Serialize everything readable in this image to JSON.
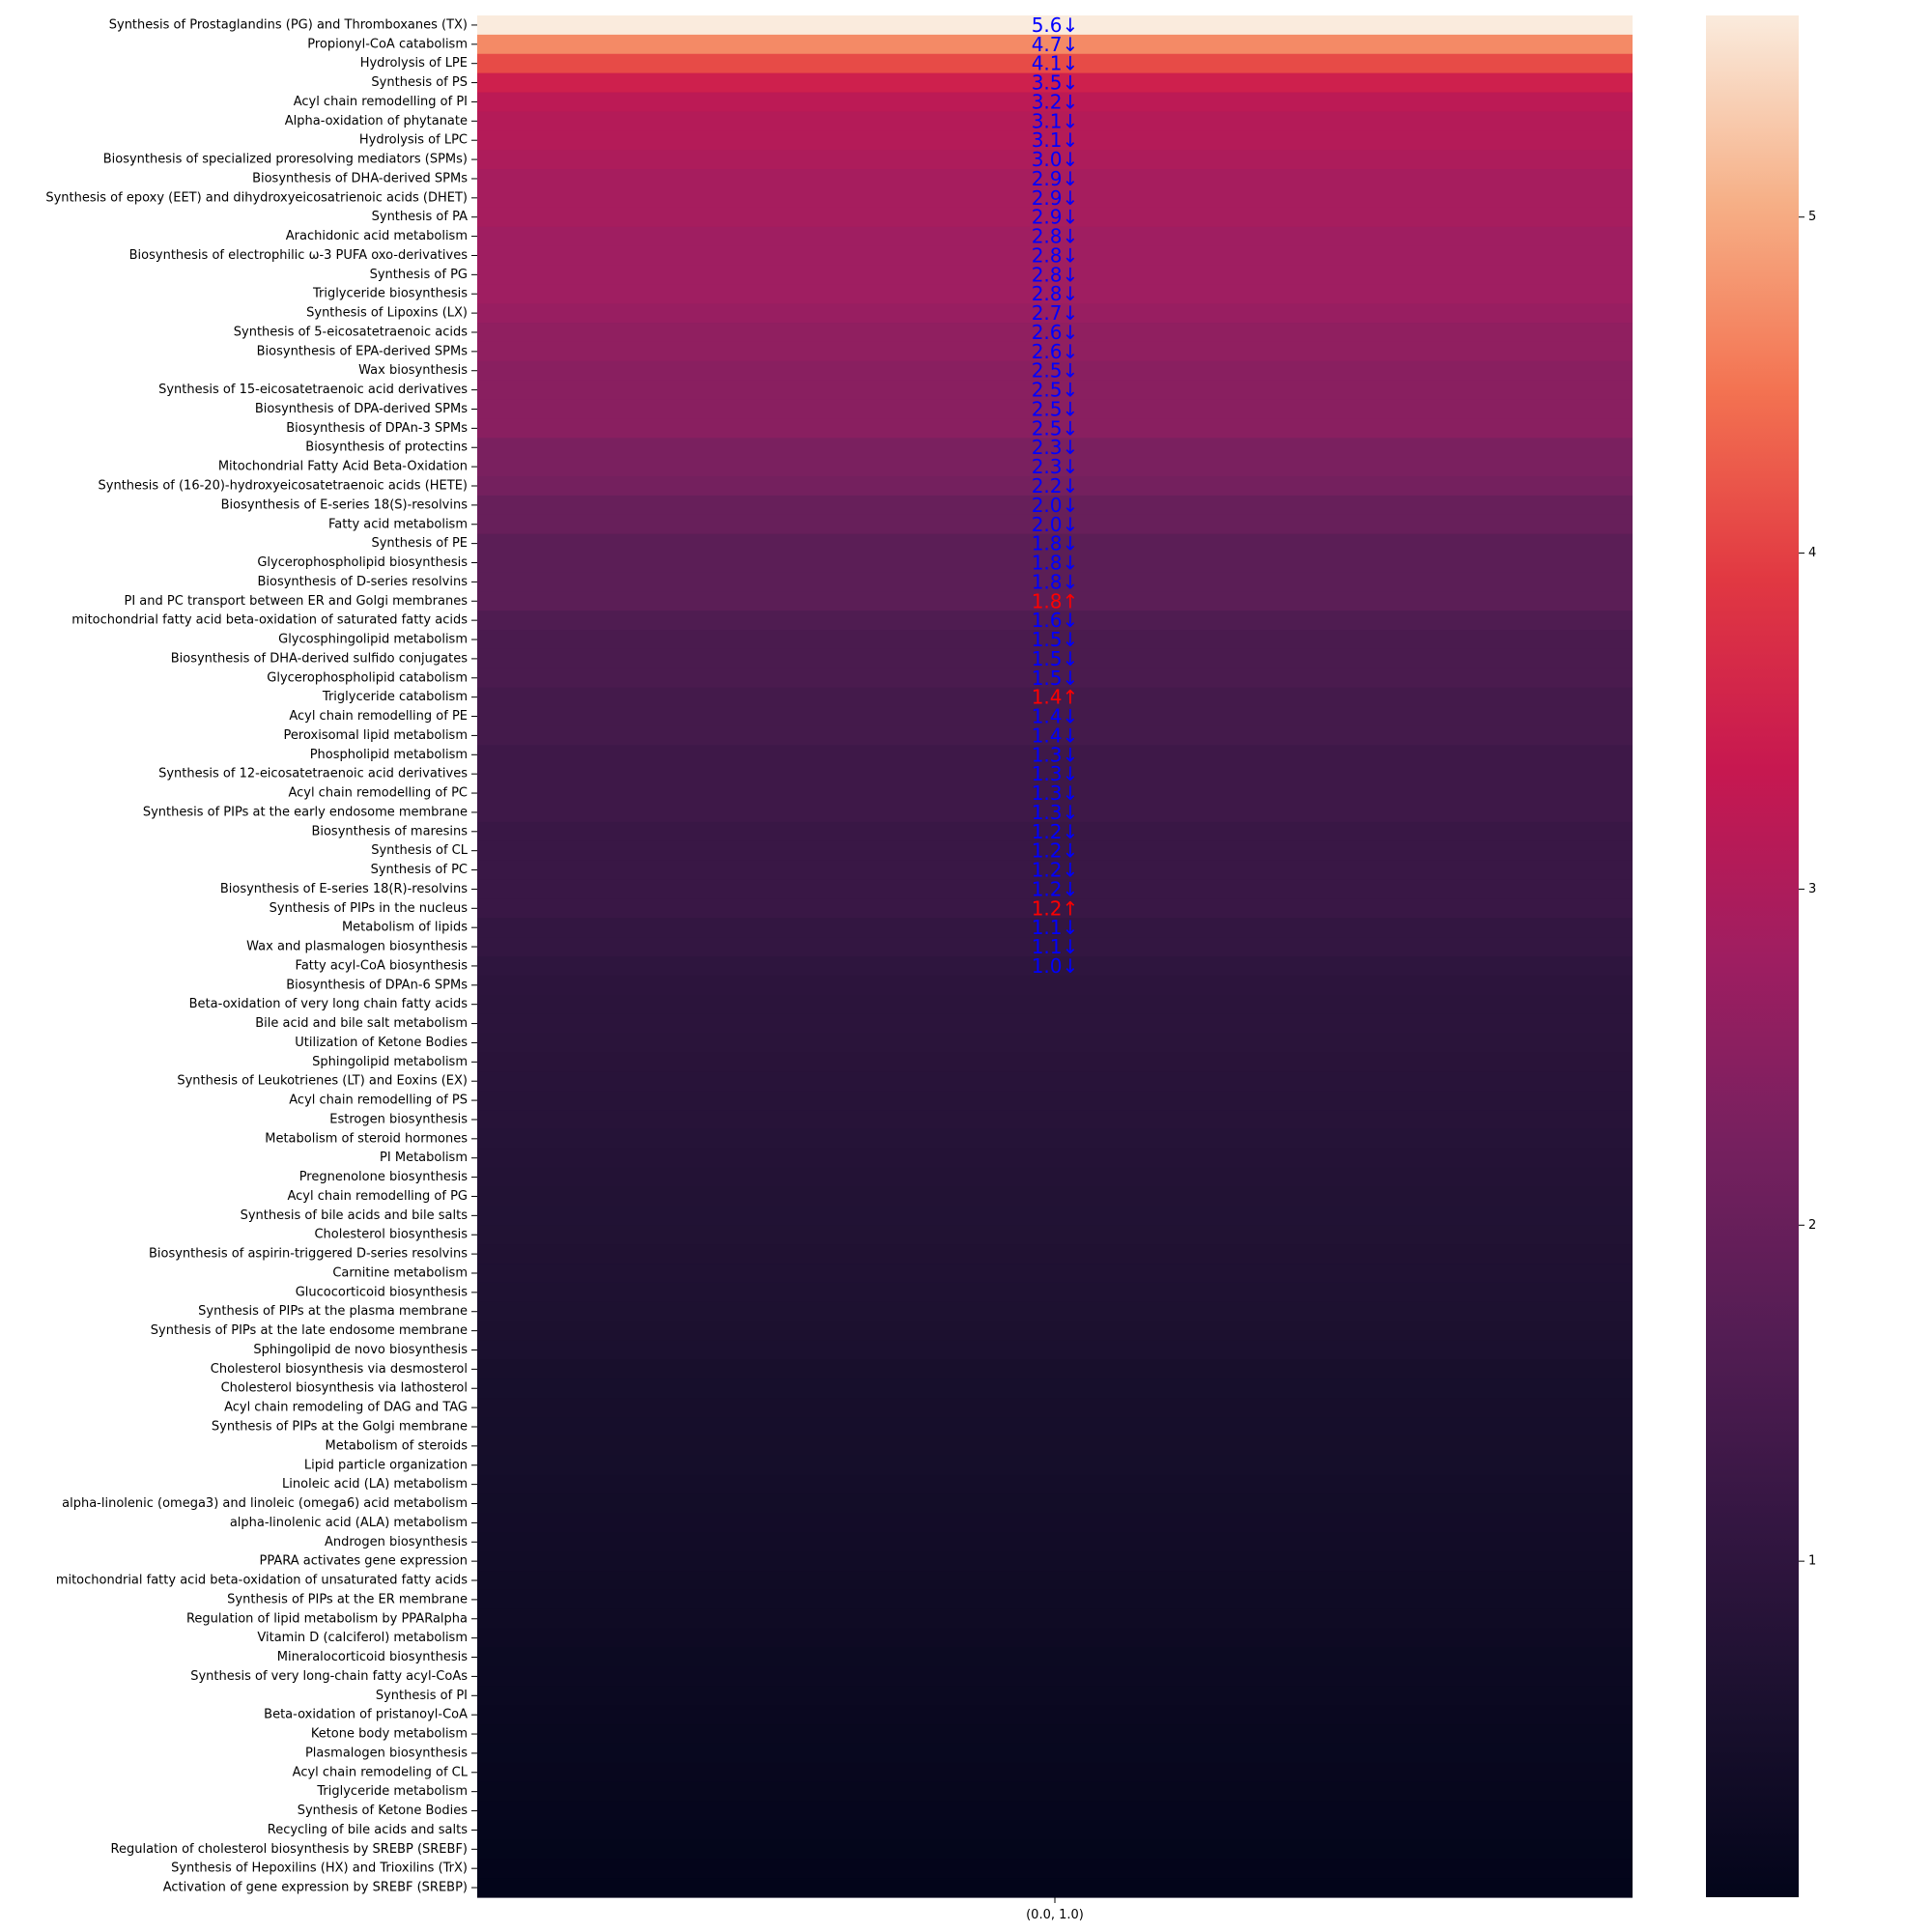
{
  "chart_data": {
    "type": "heatmap",
    "title": "",
    "xlabel": "",
    "ylabel": "",
    "columns": [
      "(0.0, 1.0)"
    ],
    "colorbar": {
      "ticks": [
        1,
        2,
        3,
        4,
        5
      ],
      "range": [
        0.0,
        5.6
      ],
      "colormap": "rocket"
    },
    "down_color": "#0000ff",
    "up_color": "#ff0000",
    "rows": [
      {
        "label": "Synthesis of Prostaglandins (PG) and Thromboxanes (TX)",
        "value": 5.6,
        "annotation": "5.6↓",
        "direction": "down"
      },
      {
        "label": "Propionyl-CoA catabolism",
        "value": 4.7,
        "annotation": "4.7↓",
        "direction": "down"
      },
      {
        "label": "Hydrolysis of LPE",
        "value": 4.1,
        "annotation": "4.1↓",
        "direction": "down"
      },
      {
        "label": "Synthesis of PS",
        "value": 3.5,
        "annotation": "3.5↓",
        "direction": "down"
      },
      {
        "label": "Acyl chain remodelling of PI",
        "value": 3.2,
        "annotation": "3.2↓",
        "direction": "down"
      },
      {
        "label": "Alpha-oxidation of phytanate",
        "value": 3.1,
        "annotation": "3.1↓",
        "direction": "down"
      },
      {
        "label": "Hydrolysis of LPC",
        "value": 3.1,
        "annotation": "3.1↓",
        "direction": "down"
      },
      {
        "label": "Biosynthesis of specialized proresolving mediators (SPMs)",
        "value": 3.0,
        "annotation": "3.0↓",
        "direction": "down"
      },
      {
        "label": "Biosynthesis of DHA-derived SPMs",
        "value": 2.9,
        "annotation": "2.9↓",
        "direction": "down"
      },
      {
        "label": "Synthesis of epoxy (EET) and dihydroxyeicosatrienoic acids (DHET)",
        "value": 2.9,
        "annotation": "2.9↓",
        "direction": "down"
      },
      {
        "label": "Synthesis of PA",
        "value": 2.9,
        "annotation": "2.9↓",
        "direction": "down"
      },
      {
        "label": "Arachidonic acid metabolism",
        "value": 2.8,
        "annotation": "2.8↓",
        "direction": "down"
      },
      {
        "label": "Biosynthesis of electrophilic ω-3 PUFA oxo-derivatives",
        "value": 2.8,
        "annotation": "2.8↓",
        "direction": "down"
      },
      {
        "label": "Synthesis of PG",
        "value": 2.8,
        "annotation": "2.8↓",
        "direction": "down"
      },
      {
        "label": "Triglyceride biosynthesis",
        "value": 2.8,
        "annotation": "2.8↓",
        "direction": "down"
      },
      {
        "label": "Synthesis of Lipoxins (LX)",
        "value": 2.7,
        "annotation": "2.7↓",
        "direction": "down"
      },
      {
        "label": "Synthesis of 5-eicosatetraenoic acids",
        "value": 2.6,
        "annotation": "2.6↓",
        "direction": "down"
      },
      {
        "label": "Biosynthesis of EPA-derived SPMs",
        "value": 2.6,
        "annotation": "2.6↓",
        "direction": "down"
      },
      {
        "label": "Wax biosynthesis",
        "value": 2.5,
        "annotation": "2.5↓",
        "direction": "down"
      },
      {
        "label": "Synthesis of 15-eicosatetraenoic acid derivatives",
        "value": 2.5,
        "annotation": "2.5↓",
        "direction": "down"
      },
      {
        "label": "Biosynthesis of DPA-derived SPMs",
        "value": 2.5,
        "annotation": "2.5↓",
        "direction": "down"
      },
      {
        "label": "Biosynthesis of DPAn-3 SPMs",
        "value": 2.5,
        "annotation": "2.5↓",
        "direction": "down"
      },
      {
        "label": "Biosynthesis of protectins",
        "value": 2.3,
        "annotation": "2.3↓",
        "direction": "down"
      },
      {
        "label": "Mitochondrial Fatty Acid Beta-Oxidation",
        "value": 2.3,
        "annotation": "2.3↓",
        "direction": "down"
      },
      {
        "label": "Synthesis of (16-20)-hydroxyeicosatetraenoic acids (HETE)",
        "value": 2.2,
        "annotation": "2.2↓",
        "direction": "down"
      },
      {
        "label": "Biosynthesis of E-series 18(S)-resolvins",
        "value": 2.0,
        "annotation": "2.0↓",
        "direction": "down"
      },
      {
        "label": "Fatty acid metabolism",
        "value": 2.0,
        "annotation": "2.0↓",
        "direction": "down"
      },
      {
        "label": "Synthesis of PE",
        "value": 1.8,
        "annotation": "1.8↓",
        "direction": "down"
      },
      {
        "label": "Glycerophospholipid biosynthesis",
        "value": 1.8,
        "annotation": "1.8↓",
        "direction": "down"
      },
      {
        "label": "Biosynthesis of D-series resolvins",
        "value": 1.8,
        "annotation": "1.8↓",
        "direction": "down"
      },
      {
        "label": "PI and PC transport between ER and Golgi membranes",
        "value": 1.8,
        "annotation": "1.8↑",
        "direction": "up"
      },
      {
        "label": "mitochondrial fatty acid beta-oxidation of saturated fatty acids",
        "value": 1.6,
        "annotation": "1.6↓",
        "direction": "down"
      },
      {
        "label": "Glycosphingolipid metabolism",
        "value": 1.5,
        "annotation": "1.5↓",
        "direction": "down"
      },
      {
        "label": "Biosynthesis of DHA-derived sulfido conjugates",
        "value": 1.5,
        "annotation": "1.5↓",
        "direction": "down"
      },
      {
        "label": "Glycerophospholipid catabolism",
        "value": 1.5,
        "annotation": "1.5↓",
        "direction": "down"
      },
      {
        "label": "Triglyceride catabolism",
        "value": 1.4,
        "annotation": "1.4↑",
        "direction": "up"
      },
      {
        "label": "Acyl chain remodelling of PE",
        "value": 1.4,
        "annotation": "1.4↓",
        "direction": "down"
      },
      {
        "label": "Peroxisomal lipid metabolism",
        "value": 1.4,
        "annotation": "1.4↓",
        "direction": "down"
      },
      {
        "label": "Phospholipid metabolism",
        "value": 1.3,
        "annotation": "1.3↓",
        "direction": "down"
      },
      {
        "label": "Synthesis of 12-eicosatetraenoic acid derivatives",
        "value": 1.3,
        "annotation": "1.3↓",
        "direction": "down"
      },
      {
        "label": "Acyl chain remodelling of PC",
        "value": 1.3,
        "annotation": "1.3↓",
        "direction": "down"
      },
      {
        "label": "Synthesis of PIPs at the early endosome membrane",
        "value": 1.3,
        "annotation": "1.3↓",
        "direction": "down"
      },
      {
        "label": "Biosynthesis of maresins",
        "value": 1.2,
        "annotation": "1.2↓",
        "direction": "down"
      },
      {
        "label": "Synthesis of CL",
        "value": 1.2,
        "annotation": "1.2↓",
        "direction": "down"
      },
      {
        "label": "Synthesis of PC",
        "value": 1.2,
        "annotation": "1.2↓",
        "direction": "down"
      },
      {
        "label": "Biosynthesis of E-series 18(R)-resolvins",
        "value": 1.2,
        "annotation": "1.2↓",
        "direction": "down"
      },
      {
        "label": "Synthesis of PIPs in the nucleus",
        "value": 1.2,
        "annotation": "1.2↑",
        "direction": "up"
      },
      {
        "label": "Metabolism of lipids",
        "value": 1.1,
        "annotation": "1.1↓",
        "direction": "down"
      },
      {
        "label": "Wax and plasmalogen biosynthesis",
        "value": 1.1,
        "annotation": "1.1↓",
        "direction": "down"
      },
      {
        "label": "Fatty acyl-CoA biosynthesis",
        "value": 1.0,
        "annotation": "1.0↓",
        "direction": "down"
      },
      {
        "label": "Biosynthesis of DPAn-6 SPMs",
        "value": 0.95,
        "annotation": "",
        "direction": ""
      },
      {
        "label": "Beta-oxidation of very long chain fatty acids",
        "value": 0.93,
        "annotation": "",
        "direction": ""
      },
      {
        "label": "Bile acid and bile salt metabolism",
        "value": 0.92,
        "annotation": "",
        "direction": ""
      },
      {
        "label": "Utilization of Ketone Bodies",
        "value": 0.9,
        "annotation": "",
        "direction": ""
      },
      {
        "label": "Sphingolipid metabolism",
        "value": 0.88,
        "annotation": "",
        "direction": ""
      },
      {
        "label": "Synthesis of Leukotrienes (LT) and Eoxins (EX)",
        "value": 0.86,
        "annotation": "",
        "direction": ""
      },
      {
        "label": "Acyl chain remodelling of PS",
        "value": 0.85,
        "annotation": "",
        "direction": ""
      },
      {
        "label": "Estrogen biosynthesis",
        "value": 0.83,
        "annotation": "",
        "direction": ""
      },
      {
        "label": "Metabolism of steroid hormones",
        "value": 0.8,
        "annotation": "",
        "direction": ""
      },
      {
        "label": "PI Metabolism",
        "value": 0.78,
        "annotation": "",
        "direction": ""
      },
      {
        "label": "Pregnenolone biosynthesis",
        "value": 0.76,
        "annotation": "",
        "direction": ""
      },
      {
        "label": "Acyl chain remodelling of PG",
        "value": 0.74,
        "annotation": "",
        "direction": ""
      },
      {
        "label": "Synthesis of bile acids and bile salts",
        "value": 0.72,
        "annotation": "",
        "direction": ""
      },
      {
        "label": "Cholesterol biosynthesis",
        "value": 0.7,
        "annotation": "",
        "direction": ""
      },
      {
        "label": "Biosynthesis of aspirin-triggered D-series resolvins",
        "value": 0.68,
        "annotation": "",
        "direction": ""
      },
      {
        "label": "Carnitine metabolism",
        "value": 0.66,
        "annotation": "",
        "direction": ""
      },
      {
        "label": "Glucocorticoid biosynthesis",
        "value": 0.64,
        "annotation": "",
        "direction": ""
      },
      {
        "label": "Synthesis of PIPs at the plasma membrane",
        "value": 0.62,
        "annotation": "",
        "direction": ""
      },
      {
        "label": "Synthesis of PIPs at the late endosome membrane",
        "value": 0.6,
        "annotation": "",
        "direction": ""
      },
      {
        "label": "Sphingolipid de novo biosynthesis",
        "value": 0.58,
        "annotation": "",
        "direction": ""
      },
      {
        "label": "Cholesterol biosynthesis via desmosterol",
        "value": 0.5,
        "annotation": "",
        "direction": ""
      },
      {
        "label": "Cholesterol biosynthesis via lathosterol",
        "value": 0.49,
        "annotation": "",
        "direction": ""
      },
      {
        "label": "Acyl chain remodeling of DAG and TAG",
        "value": 0.48,
        "annotation": "",
        "direction": ""
      },
      {
        "label": "Synthesis of PIPs at the Golgi membrane",
        "value": 0.47,
        "annotation": "",
        "direction": ""
      },
      {
        "label": "Metabolism of steroids",
        "value": 0.46,
        "annotation": "",
        "direction": ""
      },
      {
        "label": "Lipid particle organization",
        "value": 0.44,
        "annotation": "",
        "direction": ""
      },
      {
        "label": "Linoleic acid (LA) metabolism",
        "value": 0.42,
        "annotation": "",
        "direction": ""
      },
      {
        "label": "alpha-linolenic (omega3) and linoleic (omega6) acid metabolism",
        "value": 0.4,
        "annotation": "",
        "direction": ""
      },
      {
        "label": "alpha-linolenic acid (ALA) metabolism",
        "value": 0.38,
        "annotation": "",
        "direction": ""
      },
      {
        "label": "Androgen biosynthesis",
        "value": 0.36,
        "annotation": "",
        "direction": ""
      },
      {
        "label": "PPARA activates gene expression",
        "value": 0.34,
        "annotation": "",
        "direction": ""
      },
      {
        "label": "mitochondrial fatty acid beta-oxidation of unsaturated fatty acids",
        "value": 0.32,
        "annotation": "",
        "direction": ""
      },
      {
        "label": "Synthesis of PIPs at the ER membrane",
        "value": 0.3,
        "annotation": "",
        "direction": ""
      },
      {
        "label": "Regulation of lipid metabolism by PPARalpha",
        "value": 0.28,
        "annotation": "",
        "direction": ""
      },
      {
        "label": "Vitamin D (calciferol) metabolism",
        "value": 0.26,
        "annotation": "",
        "direction": ""
      },
      {
        "label": "Mineralocorticoid biosynthesis",
        "value": 0.23,
        "annotation": "",
        "direction": ""
      },
      {
        "label": "Synthesis of very long-chain fatty acyl-CoAs",
        "value": 0.21,
        "annotation": "",
        "direction": ""
      },
      {
        "label": "Synthesis of PI",
        "value": 0.19,
        "annotation": "",
        "direction": ""
      },
      {
        "label": "Beta-oxidation of pristanoyl-CoA",
        "value": 0.17,
        "annotation": "",
        "direction": ""
      },
      {
        "label": "Ketone body metabolism",
        "value": 0.15,
        "annotation": "",
        "direction": ""
      },
      {
        "label": "Plasmalogen biosynthesis",
        "value": 0.13,
        "annotation": "",
        "direction": ""
      },
      {
        "label": "Acyl chain remodeling of CL",
        "value": 0.11,
        "annotation": "",
        "direction": ""
      },
      {
        "label": "Triglyceride metabolism",
        "value": 0.09,
        "annotation": "",
        "direction": ""
      },
      {
        "label": "Synthesis of Ketone Bodies",
        "value": 0.07,
        "annotation": "",
        "direction": ""
      },
      {
        "label": "Recycling of bile acids and salts",
        "value": 0.05,
        "annotation": "",
        "direction": ""
      },
      {
        "label": "Regulation of cholesterol biosynthesis by SREBP (SREBF)",
        "value": 0.03,
        "annotation": "",
        "direction": ""
      },
      {
        "label": "Synthesis of Hepoxilins (HX) and Trioxilins (TrX)",
        "value": 0.02,
        "annotation": "",
        "direction": ""
      },
      {
        "label": "Activation of gene expression by SREBF (SREBP)",
        "value": 0.0,
        "annotation": "",
        "direction": ""
      }
    ]
  }
}
